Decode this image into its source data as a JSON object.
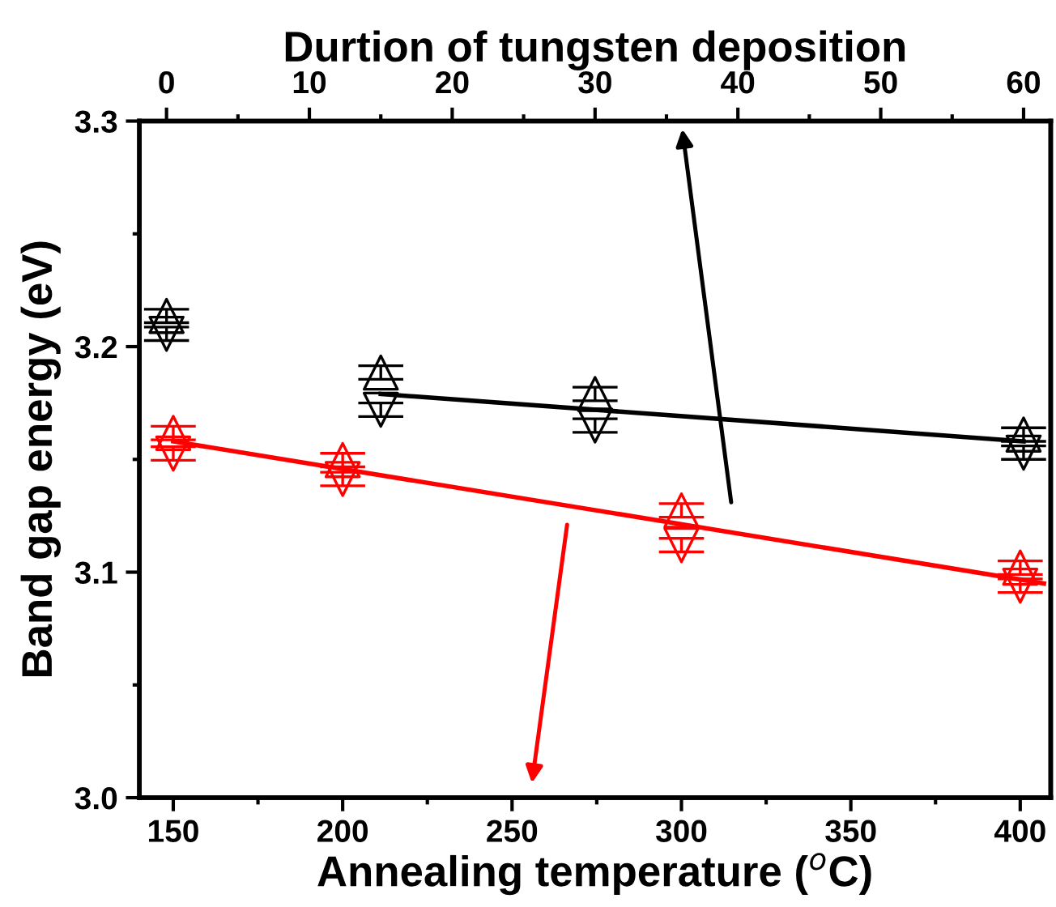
{
  "chart_data": {
    "type": "scatter",
    "xlabel": "Annealing temperature ($^{o}$C)",
    "x2label": "Durtion of tungsten deposition",
    "ylabel": "Band gap energy (eV)",
    "xlim": [
      140,
      409
    ],
    "xticks": [
      150,
      200,
      250,
      300,
      350,
      400
    ],
    "x2lim": [
      -1.9,
      61.9
    ],
    "x2ticks": [
      0,
      10,
      20,
      30,
      40,
      50,
      60
    ],
    "ylim": [
      3.0,
      3.3
    ],
    "yticks": [
      {
        "value": 3.0,
        "label": "3.0"
      },
      3.1,
      3.2,
      {
        "value": 3.3,
        "label": "3.3"
      }
    ],
    "series": [
      {
        "axis": "x2",
        "color": "#000000",
        "marker": "triangle",
        "x": [
          0,
          15,
          30,
          60
        ],
        "values": [
          3.2136,
          3.1885,
          3.179,
          3.161
        ],
        "errors": [
          0.003,
          0.003,
          0.003,
          0.003
        ]
      },
      {
        "axis": "x2",
        "color": "#000000",
        "marker": "triangle_down",
        "x": [
          0,
          15,
          30,
          60
        ],
        "values": [
          3.2057,
          3.172,
          3.165,
          3.153
        ],
        "errors": [
          0.003,
          0.003,
          0.003,
          0.003
        ]
      },
      {
        "type": "line",
        "axis": "x2",
        "color": "#000000",
        "marker": "none",
        "x": [
          15,
          60
        ],
        "values": [
          3.179,
          3.158
        ]
      },
      {
        "color": "#ff0000",
        "marker": "triangle",
        "x": [
          150,
          200,
          300,
          400
        ],
        "values": [
          3.1617,
          3.1497,
          3.1274,
          3.102
        ],
        "errors": [
          0.003,
          0.003,
          0.003,
          0.003
        ]
      },
      {
        "color": "#ff0000",
        "marker": "triangle_down",
        "x": [
          150,
          200,
          300,
          400
        ],
        "values": [
          3.1526,
          3.1413,
          3.112,
          3.094
        ],
        "errors": [
          0.003,
          0.003,
          0.003,
          0.003
        ]
      },
      {
        "type": "line",
        "color": "#ff0000",
        "marker": "none",
        "x": [
          150,
          407
        ],
        "values": [
          3.158,
          3.095
        ]
      }
    ]
  }
}
